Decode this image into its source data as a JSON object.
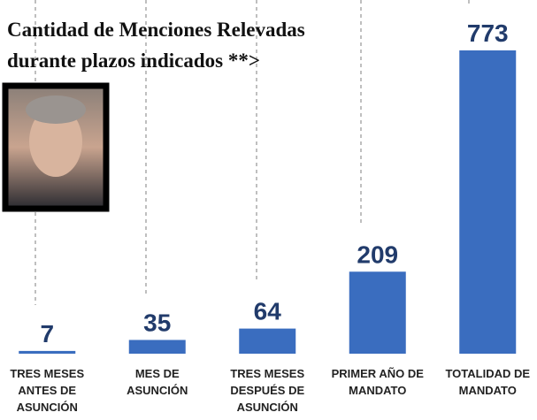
{
  "chart_data": {
    "type": "bar",
    "title": "Cantidad de Menciones Relevadas durante plazos indicados **>",
    "categories": [
      "TRES MESES ANTES DE ASUNCIÓN",
      "MES DE ASUNCIÓN",
      "TRES MESES DESPUÉS DE ASUNCIÓN",
      "PRIMER AÑO DE MANDATO",
      "TOTALIDAD DE MANDATO"
    ],
    "values": [
      7,
      35,
      64,
      209,
      773
    ],
    "color": "#3a6dbf",
    "label_color": "#213b6b"
  }
}
